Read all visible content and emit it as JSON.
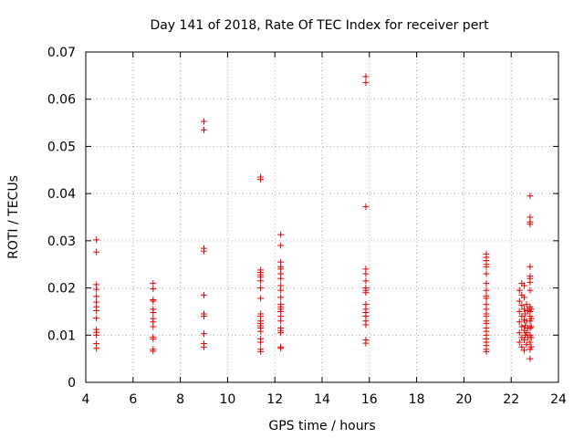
{
  "chart_data": {
    "type": "scatter",
    "title": "Day 141 of 2018, Rate Of TEC Index for receiver pert",
    "xlabel": "GPS time / hours",
    "ylabel": "ROTI / TECUs",
    "xlim": [
      4,
      24
    ],
    "ylim": [
      0,
      0.07
    ],
    "grid": true,
    "x_ticks": [
      4,
      6,
      8,
      10,
      12,
      14,
      16,
      18,
      20,
      22,
      24
    ],
    "x_tick_labels": [
      "4",
      "6",
      "8",
      "10",
      "12",
      "14",
      "16",
      "18",
      "20",
      "22",
      "24"
    ],
    "y_ticks": [
      0,
      0.01,
      0.02,
      0.03,
      0.04,
      0.05,
      0.06,
      0.07
    ],
    "y_tick_labels": [
      "0",
      "0.01",
      "0.02",
      "0.03",
      "0.04",
      "0.05",
      "0.06",
      "0.07"
    ],
    "marker": "+",
    "color": "#dd0000",
    "series": [
      {
        "name": "ROTI",
        "points": [
          [
            4.45,
            0.0302
          ],
          [
            4.45,
            0.0276
          ],
          [
            4.45,
            0.0207
          ],
          [
            4.45,
            0.0197
          ],
          [
            4.45,
            0.0182
          ],
          [
            4.45,
            0.017
          ],
          [
            4.45,
            0.016
          ],
          [
            4.45,
            0.0152
          ],
          [
            4.45,
            0.0136
          ],
          [
            4.45,
            0.0112
          ],
          [
            4.45,
            0.0106
          ],
          [
            4.45,
            0.01
          ],
          [
            4.45,
            0.0082
          ],
          [
            4.45,
            0.0072
          ],
          [
            6.85,
            0.021
          ],
          [
            6.85,
            0.0198
          ],
          [
            6.85,
            0.0175
          ],
          [
            6.85,
            0.0172
          ],
          [
            6.85,
            0.0155
          ],
          [
            6.85,
            0.0148
          ],
          [
            6.85,
            0.0135
          ],
          [
            6.85,
            0.0128
          ],
          [
            6.85,
            0.0118
          ],
          [
            6.85,
            0.0096
          ],
          [
            6.85,
            0.0092
          ],
          [
            6.85,
            0.007
          ],
          [
            6.85,
            0.0066
          ],
          [
            9.0,
            0.0553
          ],
          [
            9.0,
            0.0535
          ],
          [
            9.0,
            0.0284
          ],
          [
            9.0,
            0.0278
          ],
          [
            9.0,
            0.0185
          ],
          [
            9.0,
            0.0145
          ],
          [
            9.0,
            0.014
          ],
          [
            9.0,
            0.0103
          ],
          [
            9.0,
            0.0082
          ],
          [
            9.0,
            0.0075
          ],
          [
            11.4,
            0.0435
          ],
          [
            11.4,
            0.043
          ],
          [
            11.4,
            0.0238
          ],
          [
            11.4,
            0.0233
          ],
          [
            11.4,
            0.0228
          ],
          [
            11.4,
            0.0223
          ],
          [
            11.4,
            0.0215
          ],
          [
            11.4,
            0.02
          ],
          [
            11.4,
            0.0178
          ],
          [
            11.4,
            0.0145
          ],
          [
            11.4,
            0.014
          ],
          [
            11.4,
            0.013
          ],
          [
            11.4,
            0.0125
          ],
          [
            11.4,
            0.012
          ],
          [
            11.4,
            0.0115
          ],
          [
            11.4,
            0.0108
          ],
          [
            11.4,
            0.0092
          ],
          [
            11.4,
            0.0085
          ],
          [
            11.4,
            0.007
          ],
          [
            11.4,
            0.0065
          ],
          [
            12.25,
            0.0313
          ],
          [
            12.25,
            0.029
          ],
          [
            12.25,
            0.0255
          ],
          [
            12.25,
            0.0245
          ],
          [
            12.25,
            0.024
          ],
          [
            12.25,
            0.023
          ],
          [
            12.25,
            0.022
          ],
          [
            12.25,
            0.0205
          ],
          [
            12.25,
            0.0195
          ],
          [
            12.25,
            0.018
          ],
          [
            12.25,
            0.0165
          ],
          [
            12.25,
            0.016
          ],
          [
            12.25,
            0.0155
          ],
          [
            12.25,
            0.015
          ],
          [
            12.25,
            0.014
          ],
          [
            12.25,
            0.013
          ],
          [
            12.25,
            0.0115
          ],
          [
            12.25,
            0.011
          ],
          [
            12.25,
            0.0105
          ],
          [
            12.25,
            0.0075
          ],
          [
            12.25,
            0.0072
          ],
          [
            15.85,
            0.0648
          ],
          [
            15.85,
            0.0635
          ],
          [
            15.85,
            0.0372
          ],
          [
            15.85,
            0.024
          ],
          [
            15.85,
            0.023
          ],
          [
            15.85,
            0.0215
          ],
          [
            15.85,
            0.02
          ],
          [
            15.85,
            0.0195
          ],
          [
            15.85,
            0.019
          ],
          [
            15.85,
            0.0165
          ],
          [
            15.85,
            0.0155
          ],
          [
            15.85,
            0.0148
          ],
          [
            15.85,
            0.014
          ],
          [
            15.85,
            0.013
          ],
          [
            15.85,
            0.0122
          ],
          [
            15.85,
            0.009
          ],
          [
            15.85,
            0.0083
          ],
          [
            20.95,
            0.0272
          ],
          [
            20.95,
            0.0265
          ],
          [
            20.95,
            0.0258
          ],
          [
            20.95,
            0.025
          ],
          [
            20.95,
            0.0245
          ],
          [
            20.95,
            0.023
          ],
          [
            20.95,
            0.021
          ],
          [
            20.95,
            0.0195
          ],
          [
            20.95,
            0.0183
          ],
          [
            20.95,
            0.0178
          ],
          [
            20.95,
            0.0165
          ],
          [
            20.95,
            0.0155
          ],
          [
            20.95,
            0.0145
          ],
          [
            20.95,
            0.014
          ],
          [
            20.95,
            0.013
          ],
          [
            20.95,
            0.0125
          ],
          [
            20.95,
            0.0115
          ],
          [
            20.95,
            0.0108
          ],
          [
            20.95,
            0.01
          ],
          [
            20.95,
            0.0092
          ],
          [
            20.95,
            0.0085
          ],
          [
            20.95,
            0.0078
          ],
          [
            20.95,
            0.007
          ],
          [
            20.95,
            0.0065
          ],
          [
            22.35,
            0.0195
          ],
          [
            22.35,
            0.0172
          ],
          [
            22.35,
            0.015
          ],
          [
            22.35,
            0.0128
          ],
          [
            22.35,
            0.0105
          ],
          [
            22.35,
            0.0085
          ],
          [
            22.45,
            0.021
          ],
          [
            22.45,
            0.0185
          ],
          [
            22.45,
            0.0163
          ],
          [
            22.45,
            0.014
          ],
          [
            22.45,
            0.0118
          ],
          [
            22.45,
            0.0095
          ],
          [
            22.45,
            0.0075
          ],
          [
            22.55,
            0.0205
          ],
          [
            22.55,
            0.018
          ],
          [
            22.55,
            0.0155
          ],
          [
            22.55,
            0.0132
          ],
          [
            22.55,
            0.011
          ],
          [
            22.55,
            0.009
          ],
          [
            22.55,
            0.0068
          ],
          [
            22.6,
            0.0145
          ],
          [
            22.6,
            0.012
          ],
          [
            22.6,
            0.01
          ],
          [
            22.65,
            0.0165
          ],
          [
            22.65,
            0.013
          ],
          [
            22.65,
            0.0105
          ],
          [
            22.65,
            0.008
          ],
          [
            22.7,
            0.0152
          ],
          [
            22.7,
            0.0115
          ],
          [
            22.7,
            0.0095
          ],
          [
            22.8,
            0.0395
          ],
          [
            22.8,
            0.035
          ],
          [
            22.8,
            0.034
          ],
          [
            22.8,
            0.0335
          ],
          [
            22.8,
            0.0245
          ],
          [
            22.8,
            0.0225
          ],
          [
            22.8,
            0.022
          ],
          [
            22.8,
            0.0212
          ],
          [
            22.8,
            0.0195
          ],
          [
            22.8,
            0.016
          ],
          [
            22.8,
            0.015
          ],
          [
            22.8,
            0.014
          ],
          [
            22.8,
            0.013
          ],
          [
            22.8,
            0.0115
          ],
          [
            22.8,
            0.01
          ],
          [
            22.8,
            0.0085
          ],
          [
            22.8,
            0.007
          ],
          [
            22.8,
            0.005
          ],
          [
            22.85,
            0.0155
          ],
          [
            22.85,
            0.0135
          ],
          [
            22.85,
            0.0118
          ],
          [
            22.85,
            0.0095
          ],
          [
            22.85,
            0.0075
          ]
        ]
      }
    ]
  }
}
